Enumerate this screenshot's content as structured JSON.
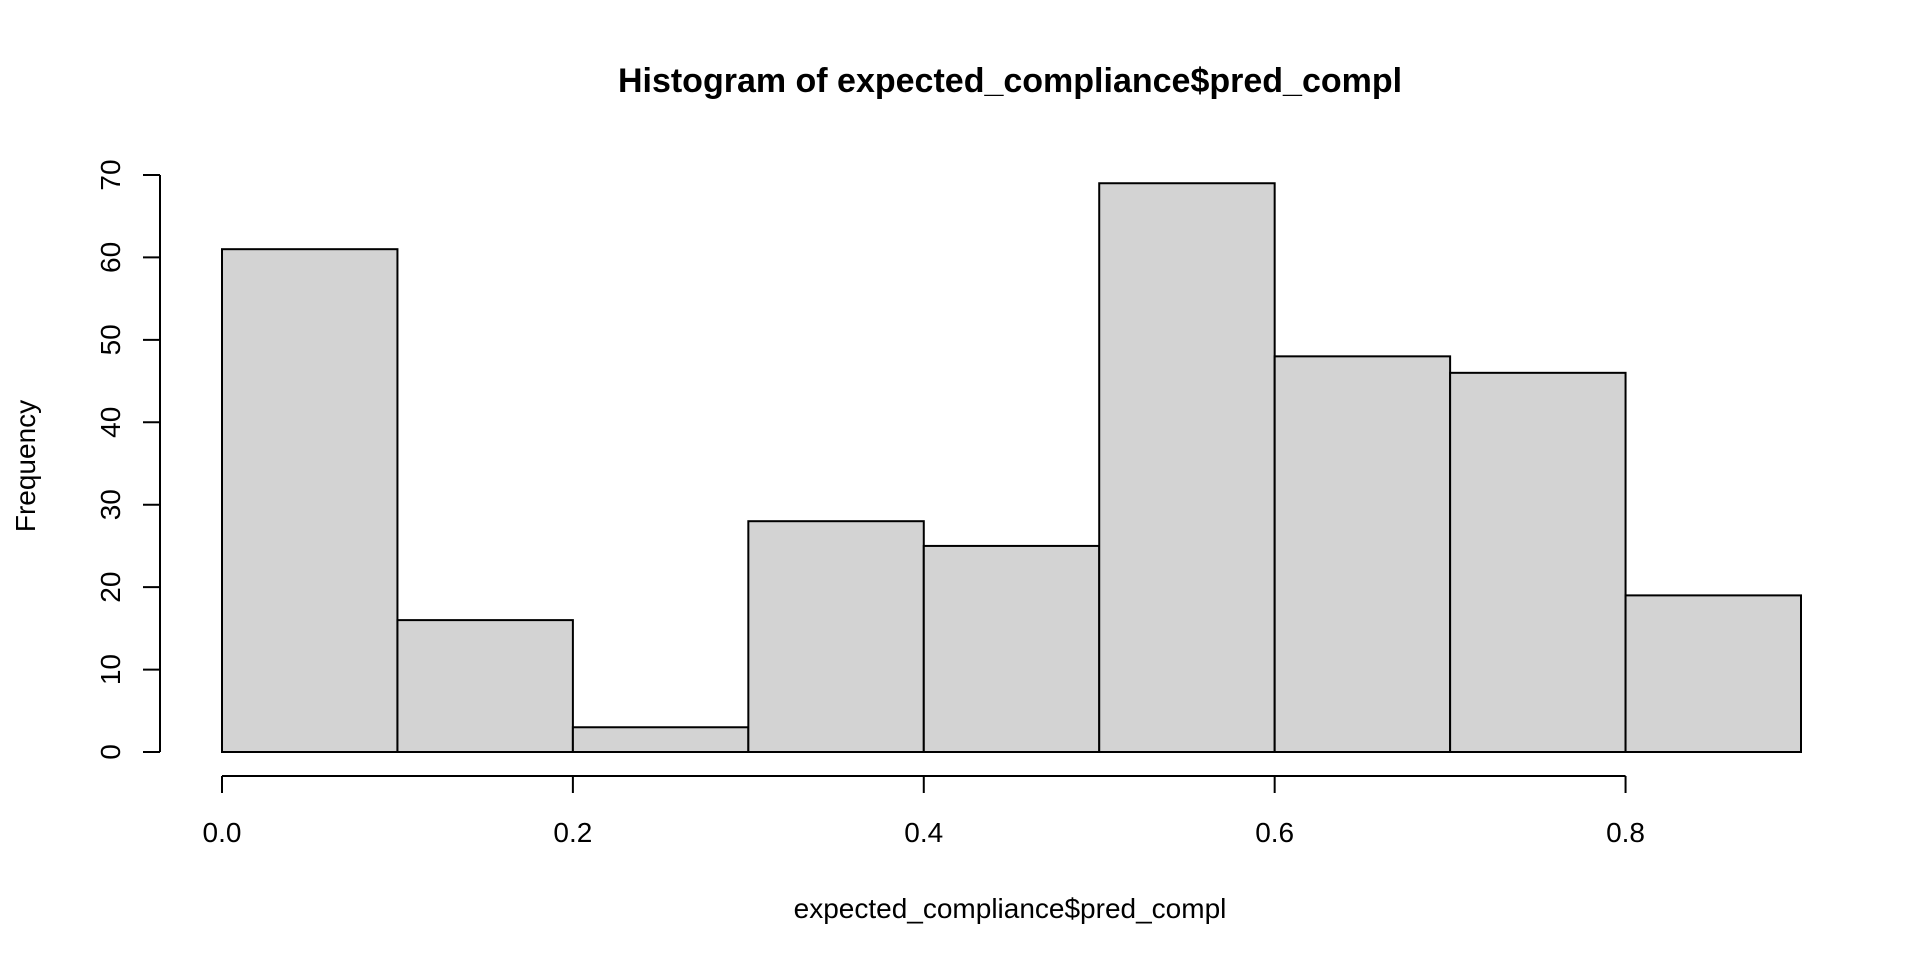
{
  "chart_data": {
    "type": "bar",
    "title": "Histogram of expected_compliance$pred_compl",
    "xlabel": "expected_compliance$pred_compl",
    "ylabel": "Frequency",
    "bins": [
      {
        "start": 0.0,
        "end": 0.1,
        "count": 61
      },
      {
        "start": 0.1,
        "end": 0.2,
        "count": 16
      },
      {
        "start": 0.2,
        "end": 0.3,
        "count": 3
      },
      {
        "start": 0.3,
        "end": 0.4,
        "count": 28
      },
      {
        "start": 0.4,
        "end": 0.5,
        "count": 25
      },
      {
        "start": 0.5,
        "end": 0.6,
        "count": 69
      },
      {
        "start": 0.6,
        "end": 0.7,
        "count": 48
      },
      {
        "start": 0.7,
        "end": 0.8,
        "count": 46
      },
      {
        "start": 0.8,
        "end": 0.9,
        "count": 19
      }
    ],
    "xlim": [
      0.0,
      0.9
    ],
    "ylim": [
      0,
      70
    ],
    "x_ticks": [
      0.0,
      0.2,
      0.4,
      0.6,
      0.8
    ],
    "x_tick_labels": [
      "0.0",
      "0.2",
      "0.4",
      "0.6",
      "0.8"
    ],
    "y_ticks": [
      0,
      10,
      20,
      30,
      40,
      50,
      60,
      70
    ],
    "y_tick_labels": [
      "0",
      "10",
      "20",
      "30",
      "40",
      "50",
      "60",
      "70"
    ],
    "grid": false,
    "legend": "none",
    "bar_fill": "#d3d3d3",
    "bar_stroke": "#000000"
  }
}
